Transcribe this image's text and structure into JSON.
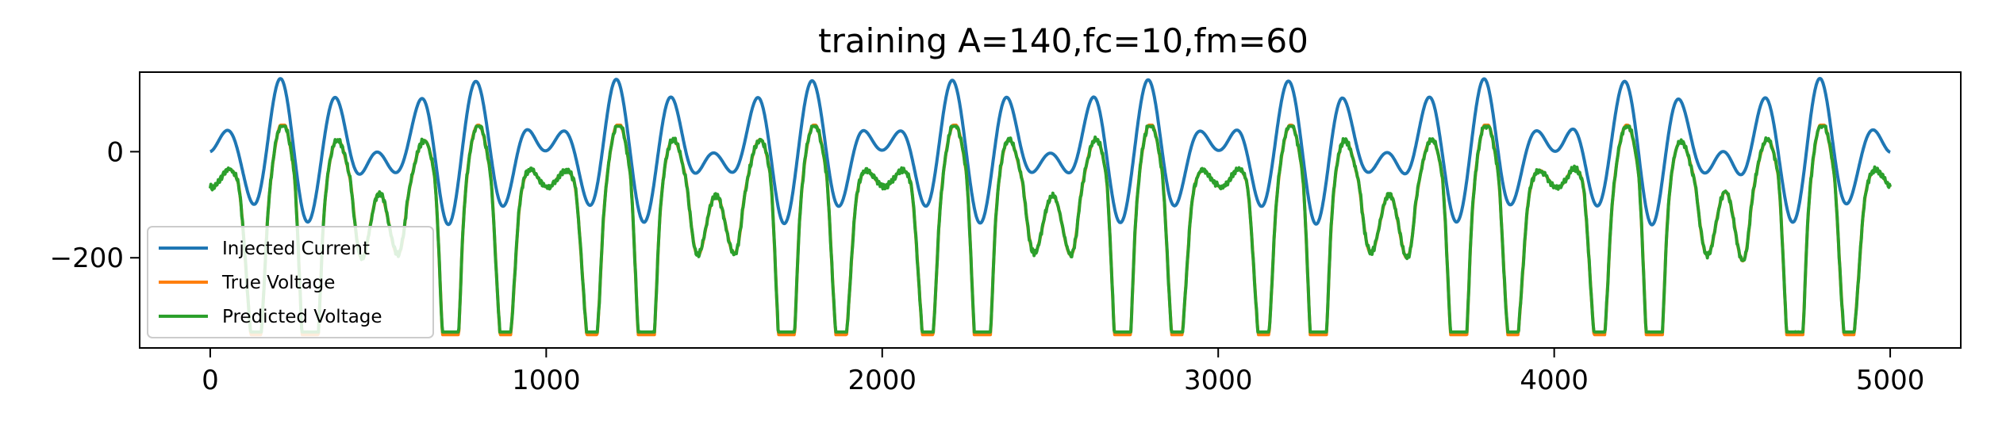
{
  "chart_data": {
    "type": "line",
    "title": "training A=140,fc=10,fm=60",
    "xlabel": "",
    "ylabel": "",
    "xlim": [
      -210,
      5210
    ],
    "ylim": [
      -370,
      150
    ],
    "x_ticks": [
      0,
      1000,
      2000,
      3000,
      4000,
      5000
    ],
    "x_tick_labels": [
      "0",
      "1000",
      "2000",
      "3000",
      "4000",
      "5000"
    ],
    "y_ticks": [
      0,
      -200
    ],
    "y_tick_labels": [
      "0",
      "−200"
    ],
    "grid": false,
    "legend_position": "lower-left",
    "signal": {
      "amplitude": 140,
      "carrier_period": 1000,
      "modulation_period": 166.67,
      "x_min": 0,
      "x_max": 5000
    },
    "series": [
      {
        "name": "Injected Current",
        "color": "#1f77b4"
      },
      {
        "name": "True Voltage",
        "color": "#ff7f0e"
      },
      {
        "name": "Predicted Voltage",
        "color": "#2ca02c"
      }
    ]
  }
}
